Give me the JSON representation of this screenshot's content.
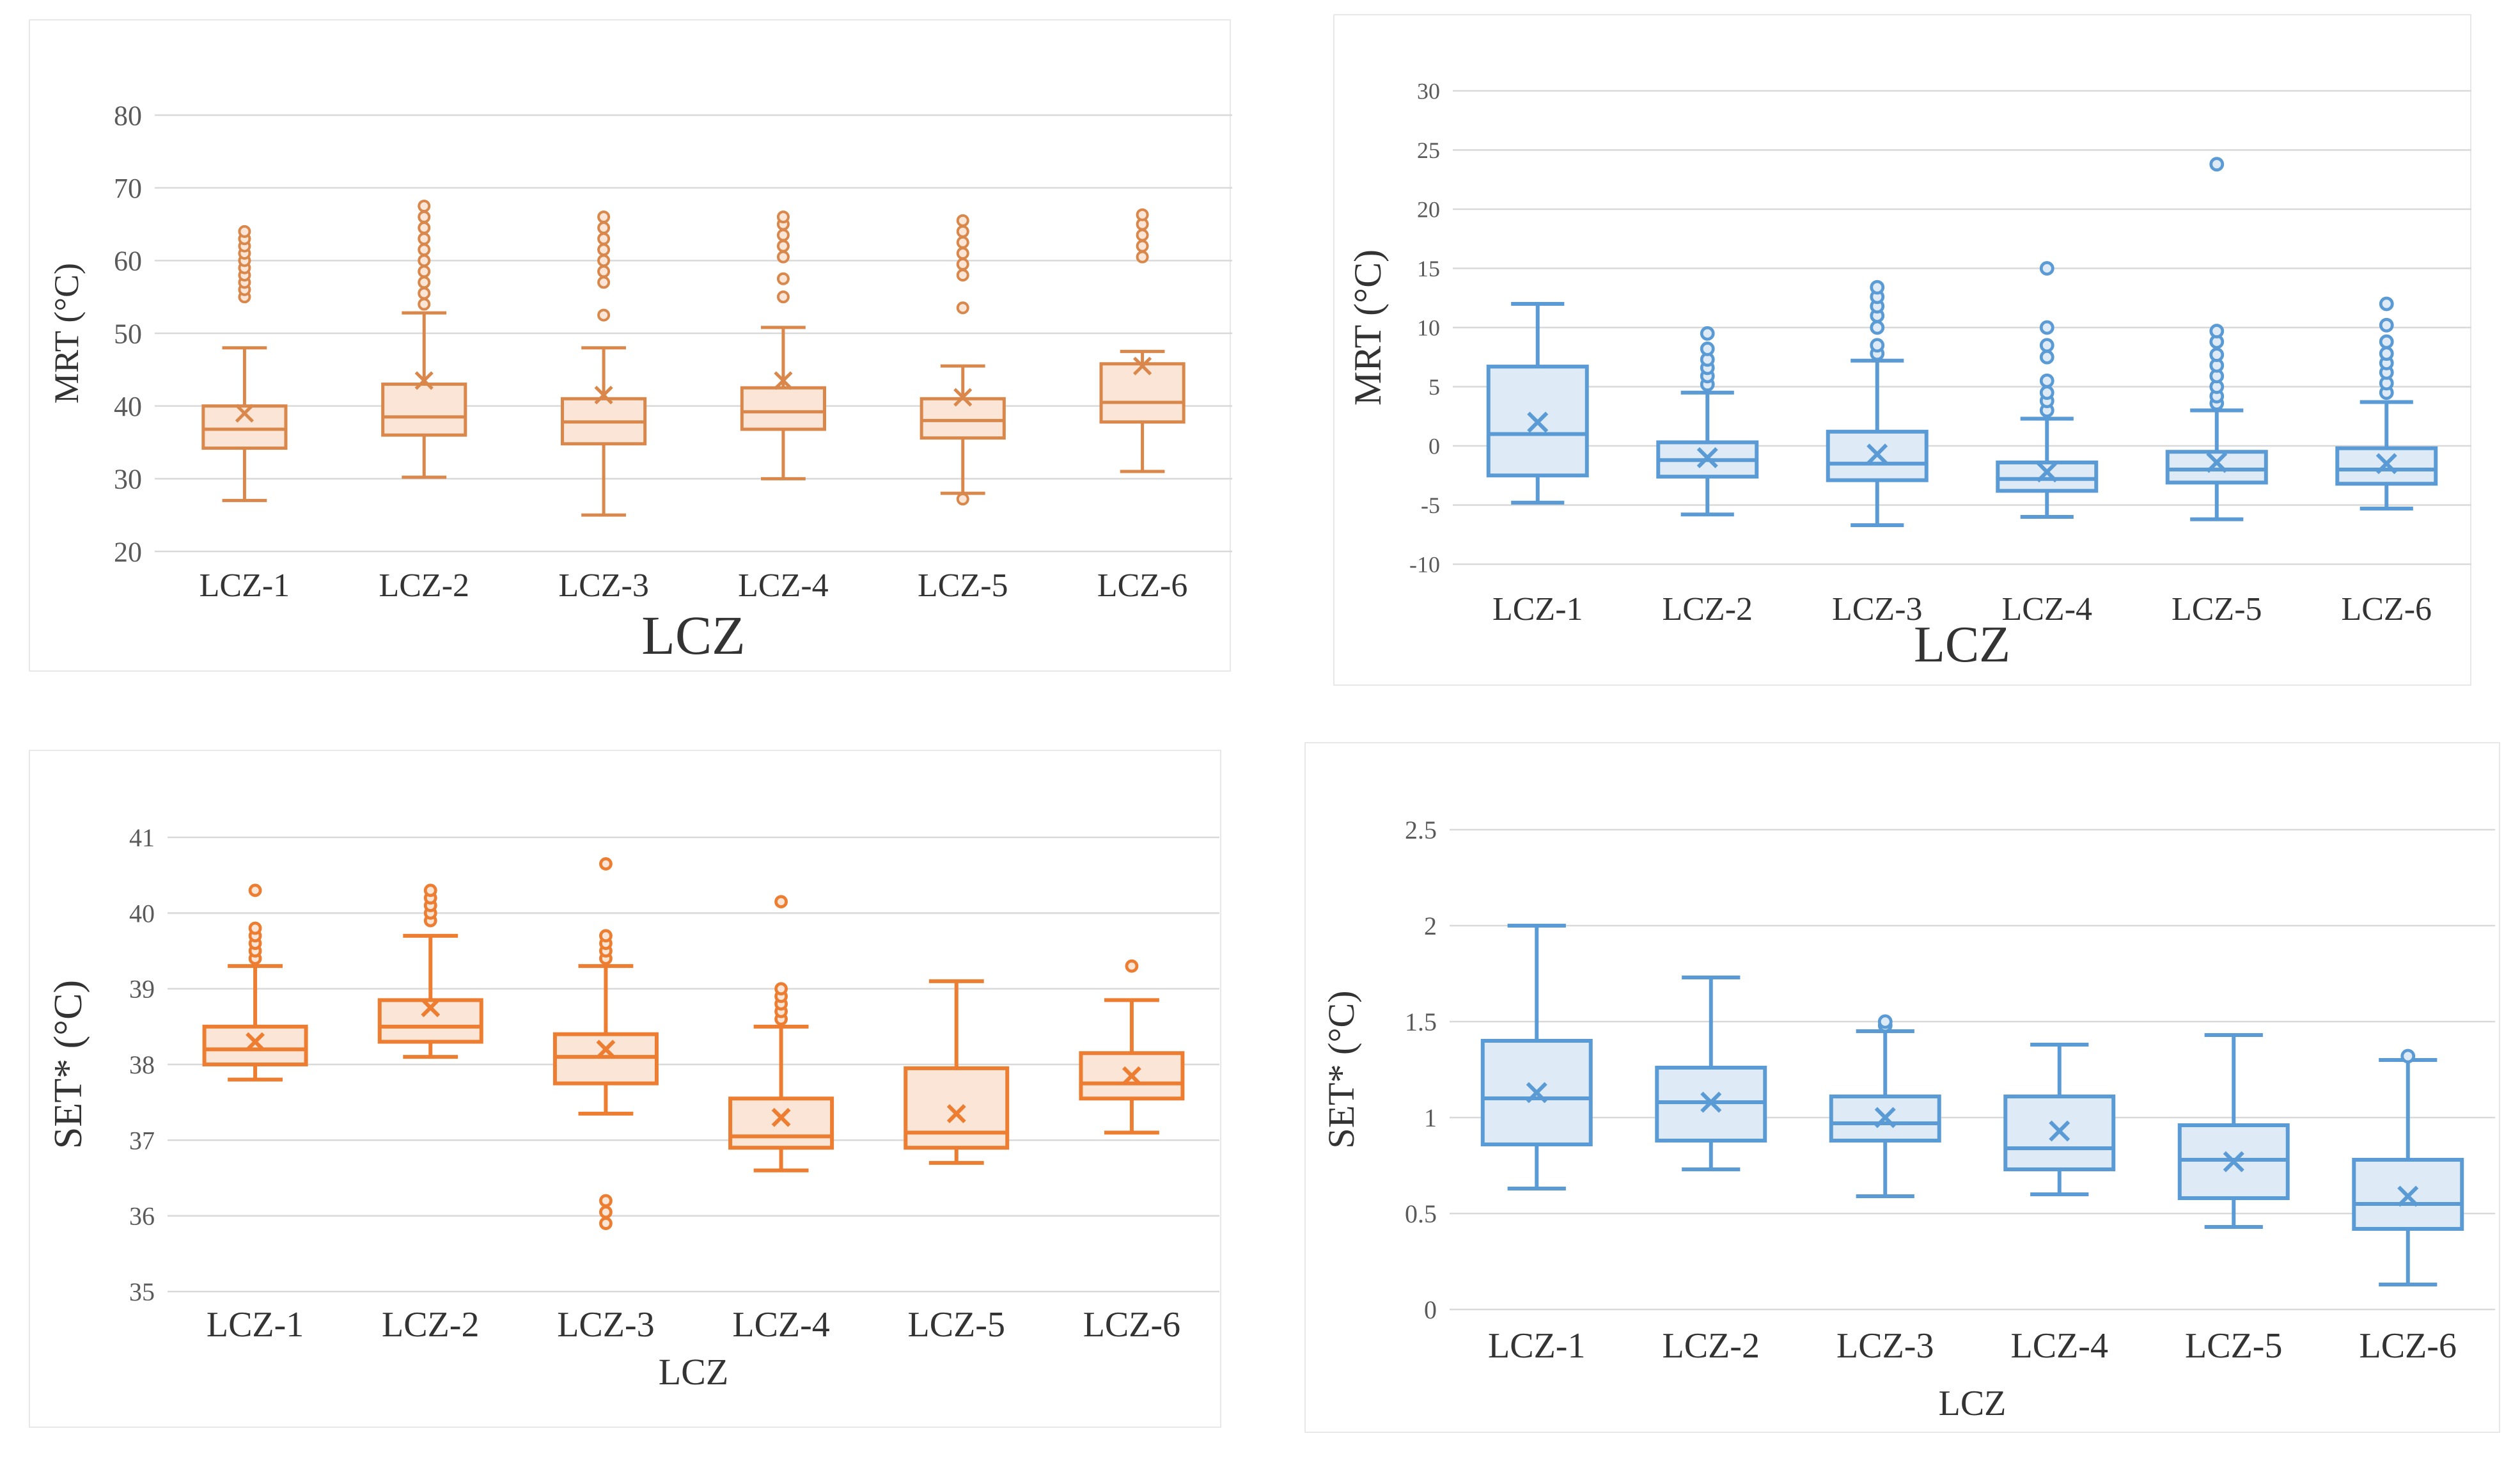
{
  "chart_data": [
    {
      "type": "box",
      "id": "mrt-summer",
      "xlabel": "LCZ",
      "ylabel": "MRT (°C)",
      "ylim": [
        20,
        80
      ],
      "yticks": [
        20,
        30,
        40,
        50,
        60,
        70,
        80
      ],
      "color": "#d9874a",
      "fill": "#fbe5d6",
      "categories": [
        "LCZ-1",
        "LCZ-2",
        "LCZ-3",
        "LCZ-4",
        "LCZ-5",
        "LCZ-6"
      ],
      "boxes": [
        {
          "min": 27,
          "q1": 34.2,
          "median": 36.8,
          "q3": 40,
          "max": 48,
          "mean": 39,
          "outliers": [
            55,
            56,
            57,
            58,
            59,
            60,
            61,
            62,
            63,
            64
          ]
        },
        {
          "min": 30.2,
          "q1": 36,
          "median": 38.5,
          "q3": 43,
          "max": 52.8,
          "mean": 43.5,
          "outliers": [
            54,
            55.5,
            57,
            58.5,
            60,
            61.5,
            63,
            64.5,
            66,
            67.5
          ]
        },
        {
          "min": 25,
          "q1": 34.8,
          "median": 37.8,
          "q3": 41,
          "max": 48,
          "mean": 41.5,
          "outliers": [
            52.5,
            57,
            58.5,
            60,
            61.5,
            63,
            64.5,
            66
          ]
        },
        {
          "min": 30,
          "q1": 36.8,
          "median": 39.2,
          "q3": 42.5,
          "max": 50.8,
          "mean": 43.5,
          "outliers": [
            55,
            57.5,
            60.5,
            62,
            63.5,
            65,
            66
          ]
        },
        {
          "min": 28,
          "q1": 35.6,
          "median": 38,
          "q3": 41,
          "max": 45.5,
          "mean": 41.2,
          "outliers": [
            27.2,
            53.5,
            58,
            59.5,
            61,
            62.5,
            64,
            65.5
          ]
        },
        {
          "min": 31,
          "q1": 37.8,
          "median": 40.5,
          "q3": 45.8,
          "max": 47.5,
          "mean": 45.5,
          "outliers": [
            60.5,
            62,
            63.5,
            65,
            66.3
          ]
        }
      ]
    },
    {
      "type": "box",
      "id": "mrt-diff",
      "xlabel": "LCZ",
      "ylabel": "MRT (°C)",
      "ylim": [
        -10,
        30
      ],
      "yticks": [
        -10,
        -5,
        0,
        5,
        10,
        15,
        20,
        25,
        30
      ],
      "color": "#5b9bd5",
      "fill": "#deebf7",
      "categories": [
        "LCZ-1",
        "LCZ-2",
        "LCZ-3",
        "LCZ-4",
        "LCZ-5",
        "LCZ-6"
      ],
      "boxes": [
        {
          "min": -4.8,
          "q1": -2.5,
          "median": 1,
          "q3": 6.7,
          "max": 12,
          "mean": 2,
          "outliers": []
        },
        {
          "min": -5.8,
          "q1": -2.6,
          "median": -1.2,
          "q3": 0.3,
          "max": 4.5,
          "mean": -1,
          "outliers": [
            5.2,
            5.9,
            6.6,
            7.3,
            8.2,
            9.5
          ]
        },
        {
          "min": -6.7,
          "q1": -2.9,
          "median": -1.5,
          "q3": 1.2,
          "max": 7.2,
          "mean": -0.7,
          "outliers": [
            7.8,
            8.5,
            10,
            11,
            11.8,
            12.6,
            13.4
          ]
        },
        {
          "min": -6,
          "q1": -3.8,
          "median": -2.8,
          "q3": -1.4,
          "max": 2.3,
          "mean": -2.2,
          "outliers": [
            3,
            3.8,
            4.5,
            5.5,
            7.5,
            8.5,
            10,
            15
          ]
        },
        {
          "min": -6.2,
          "q1": -3.1,
          "median": -2,
          "q3": -0.5,
          "max": 3,
          "mean": -1.4,
          "outliers": [
            3.6,
            4.2,
            5,
            5.9,
            6.8,
            7.7,
            8.8,
            9.7,
            23.8
          ]
        },
        {
          "min": -5.3,
          "q1": -3.2,
          "median": -2,
          "q3": -0.2,
          "max": 3.7,
          "mean": -1.5,
          "outliers": [
            4.5,
            5.3,
            6.2,
            7,
            7.8,
            8.8,
            10.2,
            12
          ]
        }
      ]
    },
    {
      "type": "box",
      "id": "set-summer",
      "xlabel": "LCZ",
      "ylabel": "SET* (°C)",
      "ylim": [
        35,
        41
      ],
      "yticks": [
        35,
        36,
        37,
        38,
        39,
        40,
        41
      ],
      "color": "#ed7d31",
      "fill": "#fbe5d6",
      "categories": [
        "LCZ-1",
        "LCZ-2",
        "LCZ-3",
        "LCZ-4",
        "LCZ-5",
        "LCZ-6"
      ],
      "boxes": [
        {
          "min": 37.8,
          "q1": 38,
          "median": 38.2,
          "q3": 38.5,
          "max": 39.3,
          "mean": 38.3,
          "outliers": [
            39.4,
            39.5,
            39.6,
            39.7,
            39.8,
            40.3
          ]
        },
        {
          "min": 38.1,
          "q1": 38.3,
          "median": 38.5,
          "q3": 38.85,
          "max": 39.7,
          "mean": 38.75,
          "outliers": [
            39.9,
            40,
            40.1,
            40.2,
            40.3
          ]
        },
        {
          "min": 37.35,
          "q1": 37.75,
          "median": 38.1,
          "q3": 38.4,
          "max": 39.3,
          "mean": 38.2,
          "outliers": [
            35.9,
            36.05,
            36.2,
            39.4,
            39.5,
            39.6,
            39.7,
            40.65
          ]
        },
        {
          "min": 36.6,
          "q1": 36.9,
          "median": 37.05,
          "q3": 37.55,
          "max": 38.5,
          "mean": 37.3,
          "outliers": [
            38.6,
            38.7,
            38.8,
            38.9,
            39,
            40.15
          ]
        },
        {
          "min": 36.7,
          "q1": 36.9,
          "median": 37.1,
          "q3": 37.95,
          "max": 39.1,
          "mean": 37.35,
          "outliers": []
        },
        {
          "min": 37.1,
          "q1": 37.55,
          "median": 37.75,
          "q3": 38.15,
          "max": 38.85,
          "mean": 37.85,
          "outliers": [
            39.3
          ]
        }
      ]
    },
    {
      "type": "box",
      "id": "set-diff",
      "xlabel": "LCZ",
      "ylabel": "SET* (°C)",
      "ylim": [
        0,
        2.5
      ],
      "yticks": [
        0,
        0.5,
        1,
        1.5,
        2,
        2.5
      ],
      "color": "#5b9bd5",
      "fill": "#deebf7",
      "categories": [
        "LCZ-1",
        "LCZ-2",
        "LCZ-3",
        "LCZ-4",
        "LCZ-5",
        "LCZ-6"
      ],
      "boxes": [
        {
          "min": 0.63,
          "q1": 0.86,
          "median": 1.1,
          "q3": 1.4,
          "max": 2,
          "mean": 1.13,
          "outliers": []
        },
        {
          "min": 0.73,
          "q1": 0.88,
          "median": 1.08,
          "q3": 1.26,
          "max": 1.73,
          "mean": 1.08,
          "outliers": []
        },
        {
          "min": 0.59,
          "q1": 0.88,
          "median": 0.97,
          "q3": 1.11,
          "max": 1.45,
          "mean": 1,
          "outliers": [
            1.48,
            1.5
          ]
        },
        {
          "min": 0.6,
          "q1": 0.73,
          "median": 0.84,
          "q3": 1.11,
          "max": 1.38,
          "mean": 0.93,
          "outliers": []
        },
        {
          "min": 0.43,
          "q1": 0.58,
          "median": 0.78,
          "q3": 0.96,
          "max": 1.43,
          "mean": 0.77,
          "outliers": []
        },
        {
          "min": 0.13,
          "q1": 0.42,
          "median": 0.55,
          "q3": 0.78,
          "max": 1.3,
          "mean": 0.59,
          "outliers": [
            1.32
          ]
        }
      ]
    }
  ]
}
